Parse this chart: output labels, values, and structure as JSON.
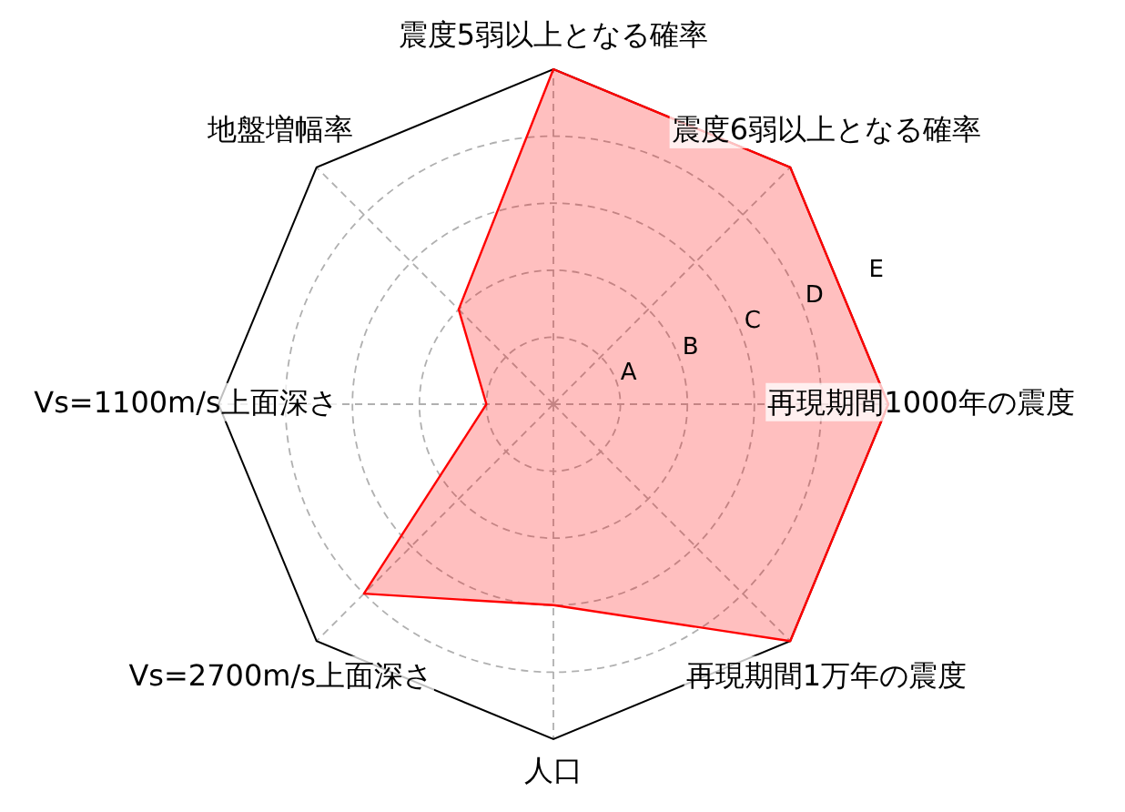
{
  "chart_data": {
    "type": "radar",
    "categories": [
      "震度5弱以上となる確率",
      "震度6弱以上となる確率",
      "再現期間1000年の震度",
      "再現期間1万年の震度",
      "人口",
      "Vs=2700m/s上面深さ",
      "Vs=1100m/s上面深さ",
      "地盤増幅率"
    ],
    "series": [
      {
        "color": "#ff0000",
        "values": [
          5,
          5,
          5,
          5,
          3,
          4,
          1,
          2
        ]
      }
    ],
    "ylim": [
      0,
      5
    ],
    "yticks": [
      {
        "value": 1,
        "label": "A"
      },
      {
        "value": 2,
        "label": "B"
      },
      {
        "value": 3,
        "label": "C"
      },
      {
        "value": 4,
        "label": "D"
      },
      {
        "value": 5,
        "label": "E"
      }
    ],
    "grid": true
  }
}
